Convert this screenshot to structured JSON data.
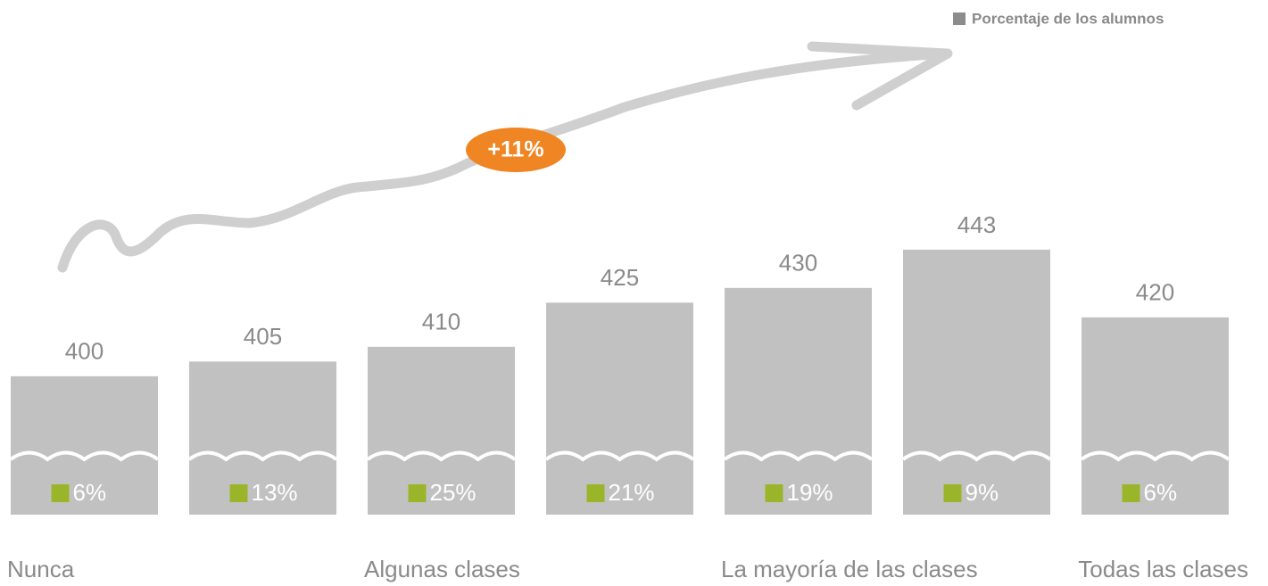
{
  "chart_data": {
    "type": "bar",
    "categories": [
      "Nunca",
      null,
      "Algunas clases",
      null,
      "La mayoría de las clases",
      null,
      "Todas las clases"
    ],
    "values": [
      400,
      405,
      410,
      425,
      430,
      443,
      420
    ],
    "color": "#c1c1c2",
    "ylim": [
      353,
      446
    ],
    "annotation": "+11%",
    "annotation_color": "#ef8523",
    "legend": "top-right",
    "legend_marker_color": "#8c8c8c",
    "series": [
      {
        "name": "Porcentaje de los alumnos",
        "color": "#9bb52a",
        "values": [
          6,
          13,
          25,
          21,
          19,
          9,
          6
        ],
        "value_labels": [
          "6%",
          "13%",
          "25%",
          "21%",
          "19%",
          "9%",
          "6%"
        ]
      }
    ]
  }
}
